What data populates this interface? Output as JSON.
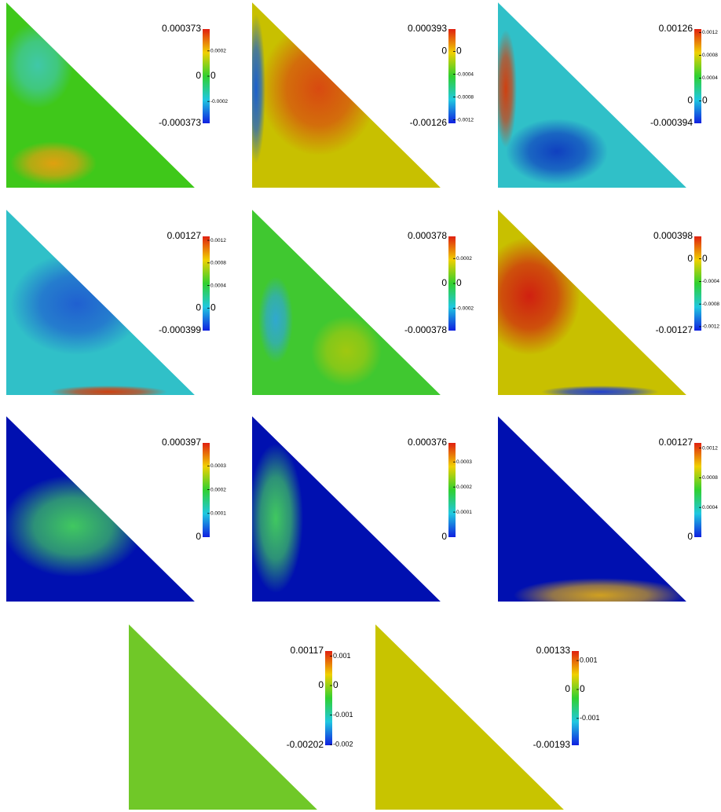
{
  "panels": [
    {
      "max": "0.000373",
      "min": "-0.000373",
      "left_ticks": [
        "0"
      ],
      "right_ticks": [
        "0.0002",
        "0",
        "-0.0002"
      ]
    },
    {
      "max": "0.000393",
      "min": "-0.00126",
      "left_ticks": [
        "0"
      ],
      "right_ticks": [
        "0",
        "-0.0004",
        "-0.0008",
        "-0.0012"
      ]
    },
    {
      "max": "0.00126",
      "min": "-0.000394",
      "left_ticks": [
        "0"
      ],
      "right_ticks": [
        "0.0012",
        "0.0008",
        "0.0004",
        "0"
      ]
    },
    {
      "max": "0.00127",
      "min": "-0.000399",
      "left_ticks": [
        "0"
      ],
      "right_ticks": [
        "0.0012",
        "0.0008",
        "0.0004",
        "0"
      ]
    },
    {
      "max": "0.000378",
      "min": "-0.000378",
      "left_ticks": [
        "0"
      ],
      "right_ticks": [
        "0.0002",
        "0",
        "-0.0002"
      ]
    },
    {
      "max": "0.000398",
      "min": "-0.00127",
      "left_ticks": [
        "0"
      ],
      "right_ticks": [
        "0",
        "-0.0004",
        "-0.0008",
        "-0.0012"
      ]
    },
    {
      "max": "0.000397",
      "min": "0",
      "left_ticks": [],
      "right_ticks": [
        "0.0003",
        "0.0002",
        "0.0001"
      ]
    },
    {
      "max": "0.000376",
      "min": "0",
      "left_ticks": [],
      "right_ticks": [
        "0.0003",
        "0.0002",
        "0.0001"
      ]
    },
    {
      "max": "0.00127",
      "min": "0",
      "left_ticks": [],
      "right_ticks": [
        "0.0012",
        "0.0008",
        "0.0004"
      ]
    },
    {
      "max": "0.00117",
      "min": "-0.00202",
      "left_ticks": [
        "0"
      ],
      "right_ticks": [
        "0.001",
        "0",
        "-0.001",
        "-0.002"
      ]
    },
    {
      "max": "0.00133",
      "min": "-0.00193",
      "left_ticks": [
        "0"
      ],
      "right_ticks": [
        "0.001",
        "0",
        "-0.001"
      ]
    }
  ]
}
